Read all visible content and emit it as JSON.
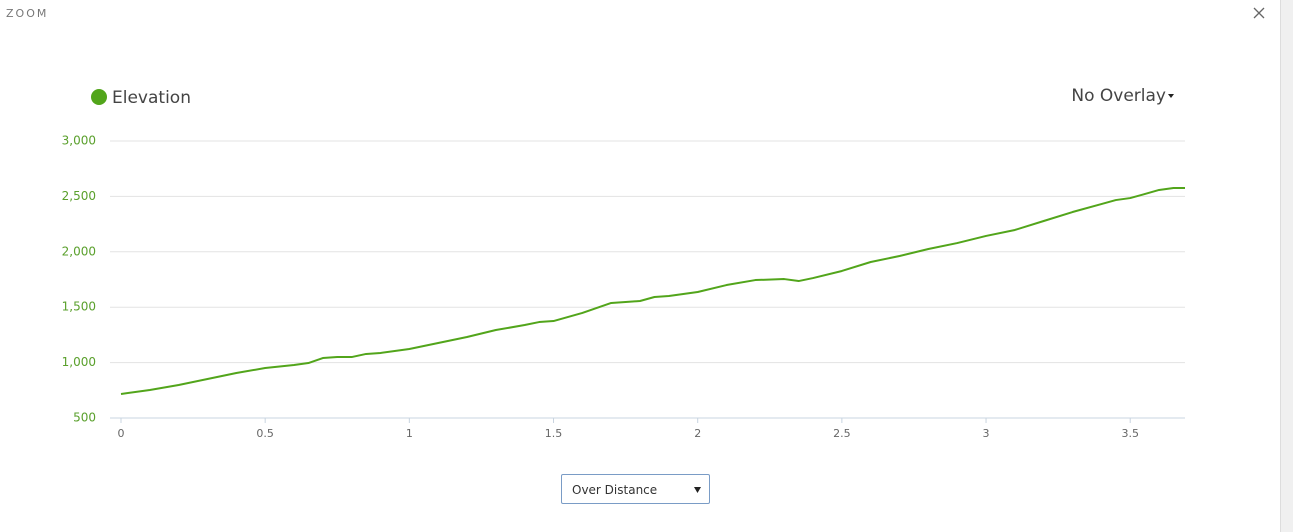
{
  "dialog": {
    "title": "ZOOM",
    "overlay": "No Overlay",
    "x_mode": "Over Distance"
  },
  "chart_data": {
    "type": "line",
    "x": [
      0,
      0.1,
      0.2,
      0.3,
      0.4,
      0.5,
      0.6,
      0.65,
      0.7,
      0.75,
      0.8,
      0.85,
      0.9,
      1.0,
      1.1,
      1.2,
      1.3,
      1.4,
      1.45,
      1.5,
      1.6,
      1.7,
      1.75,
      1.8,
      1.85,
      1.9,
      2.0,
      2.1,
      2.2,
      2.3,
      2.35,
      2.4,
      2.5,
      2.6,
      2.7,
      2.8,
      2.9,
      3.0,
      3.1,
      3.2,
      3.3,
      3.4,
      3.45,
      3.5,
      3.55,
      3.6,
      3.65,
      3.69
    ],
    "series": [
      {
        "name": "Elevation",
        "color": "#52a51b",
        "values": [
          717,
          753,
          798,
          852,
          906,
          951,
          978,
          996,
          1041,
          1050,
          1050,
          1078,
          1087,
          1123,
          1177,
          1231,
          1294,
          1339,
          1366,
          1375,
          1448,
          1538,
          1547,
          1556,
          1592,
          1601,
          1637,
          1700,
          1745,
          1754,
          1736,
          1763,
          1827,
          1908,
          1962,
          2025,
          2079,
          2143,
          2197,
          2278,
          2359,
          2431,
          2467,
          2485,
          2521,
          2558,
          2576,
          2576
        ]
      }
    ],
    "xlim": [
      0,
      3.69
    ],
    "ylim": [
      500,
      3000
    ],
    "xticks": [
      0,
      0.5,
      1,
      1.5,
      2,
      2.5,
      3,
      3.5
    ],
    "yticks": [
      500,
      {
        "value": 1000,
        "label": "1,000"
      },
      {
        "value": 1500,
        "label": "1,500"
      },
      {
        "value": 2000,
        "label": "2,000"
      },
      {
        "value": 2500,
        "label": "2,500"
      },
      {
        "value": 3000,
        "label": "3,000"
      }
    ],
    "grid": true
  }
}
